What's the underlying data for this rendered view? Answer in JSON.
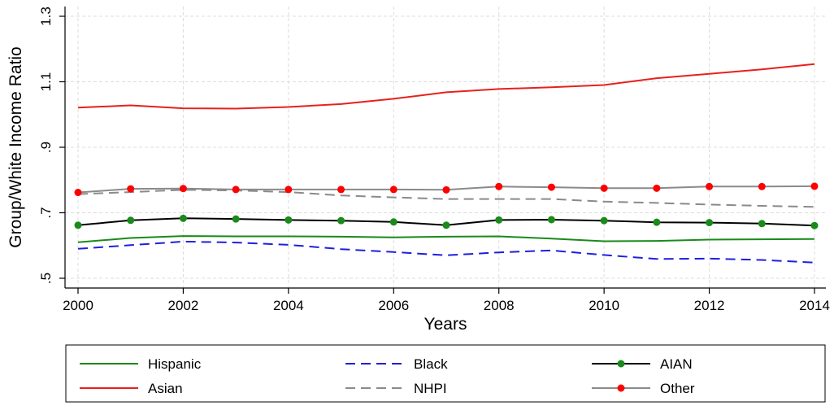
{
  "chart_data": {
    "type": "line",
    "title": "",
    "xlabel": "Years",
    "ylabel": "Group/White Income Ratio",
    "xlim": [
      2000,
      2014
    ],
    "ylim": [
      0.5,
      1.3
    ],
    "x_ticks": [
      2000,
      2002,
      2004,
      2006,
      2008,
      2010,
      2012,
      2014
    ],
    "x_tick_labels": [
      "2000",
      "2002",
      "2004",
      "2006",
      "2008",
      "2010",
      "2012",
      "2014"
    ],
    "y_ticks": [
      0.5,
      0.7,
      0.9,
      1.1,
      1.3
    ],
    "y_tick_labels": [
      ".5",
      ".7",
      ".9",
      "1.1",
      "1.3"
    ],
    "grid": "horizontal and vertical, light gray dashed",
    "legend_position": "bottom",
    "x": [
      2000,
      2001,
      2002,
      2003,
      2004,
      2005,
      2006,
      2007,
      2008,
      2009,
      2010,
      2011,
      2012,
      2013,
      2014
    ],
    "series": [
      {
        "name": "Hispanic",
        "color": "#1a8a1a",
        "line_style": "solid",
        "marker": "none",
        "values": [
          0.61,
          0.623,
          0.629,
          0.628,
          0.628,
          0.627,
          0.625,
          0.627,
          0.628,
          0.621,
          0.613,
          0.614,
          0.618,
          0.619,
          0.62
        ]
      },
      {
        "name": "Black",
        "color": "#1f1fdf",
        "line_style": "dashed",
        "marker": "none",
        "values": [
          0.59,
          0.601,
          0.612,
          0.609,
          0.602,
          0.589,
          0.58,
          0.57,
          0.579,
          0.585,
          0.571,
          0.559,
          0.56,
          0.556,
          0.548
        ]
      },
      {
        "name": "AIAN",
        "color": "#000000",
        "marker_color": "#1a8a1a",
        "line_style": "solid",
        "marker": "circle",
        "values": [
          0.662,
          0.677,
          0.683,
          0.681,
          0.678,
          0.676,
          0.672,
          0.662,
          0.678,
          0.679,
          0.676,
          0.671,
          0.67,
          0.667,
          0.661
        ]
      },
      {
        "name": "Asian",
        "color": "#e8201c",
        "line_style": "solid",
        "marker": "none",
        "values": [
          1.021,
          1.028,
          1.019,
          1.018,
          1.023,
          1.032,
          1.048,
          1.068,
          1.078,
          1.083,
          1.09,
          1.111,
          1.124,
          1.138,
          1.154
        ]
      },
      {
        "name": "NHPI",
        "color": "#8a8a8a",
        "line_style": "dashed",
        "marker": "none",
        "values": [
          0.757,
          0.763,
          0.77,
          0.768,
          0.763,
          0.753,
          0.747,
          0.742,
          0.742,
          0.742,
          0.734,
          0.73,
          0.725,
          0.721,
          0.718
        ]
      },
      {
        "name": "Other",
        "color": "#8a8a8a",
        "marker_color": "#ff0000",
        "line_style": "solid",
        "marker": "circle",
        "values": [
          0.762,
          0.773,
          0.774,
          0.771,
          0.771,
          0.771,
          0.771,
          0.77,
          0.78,
          0.778,
          0.775,
          0.775,
          0.78,
          0.78,
          0.781
        ]
      }
    ]
  }
}
